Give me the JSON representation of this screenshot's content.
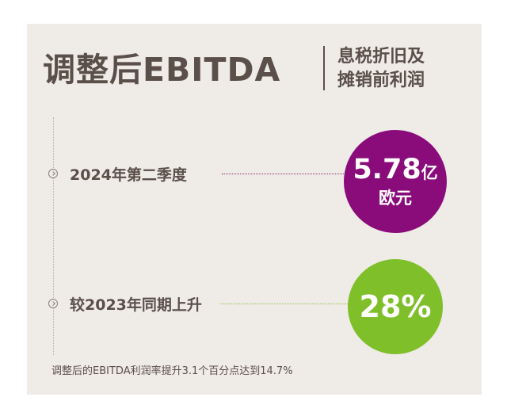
{
  "header": {
    "title": "调整后EBITDA",
    "subtitle_line1": "息税折旧及",
    "subtitle_line2": "摊销前利润"
  },
  "rows": [
    {
      "label": "2024年第二季度",
      "value": "5.78",
      "unit_inline": "亿",
      "unit_line": "欧元",
      "accent_color": "#8a0b7a"
    },
    {
      "label": "较2023年同期上升",
      "value": "28%",
      "accent_color": "#7fbf2a"
    }
  ],
  "footnote": "调整后的EBITDA利润率提升3.1个百分点达到14.7%",
  "icons": [
    "chevron-right-circle-icon",
    "chevron-right-circle-icon"
  ],
  "colors": {
    "background": "#efebe7",
    "text": "#5b4f49",
    "purple": "#8a0b7a",
    "green": "#7fbf2a"
  }
}
